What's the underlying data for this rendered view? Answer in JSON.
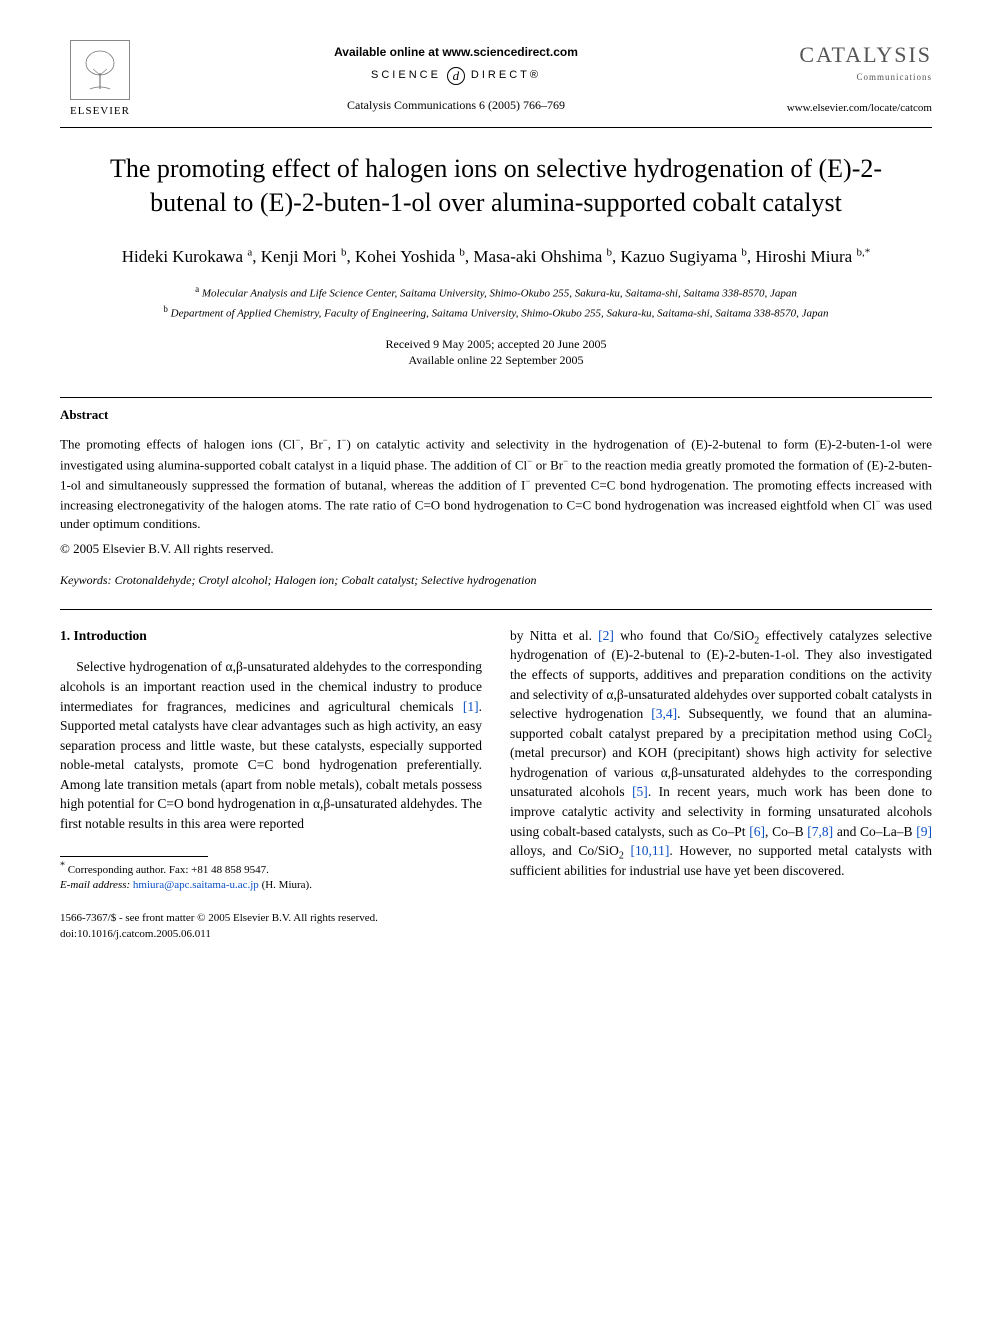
{
  "header": {
    "elsevier": "ELSEVIER",
    "available_online": "Available online at www.sciencedirect.com",
    "science_left": "SCIENCE",
    "science_d": "d",
    "science_right": "DIRECT®",
    "journal_ref": "Catalysis Communications 6 (2005) 766–769",
    "journal_title": "CATALYSIS",
    "journal_sub": "Communications",
    "locate_url": "www.elsevier.com/locate/catcom"
  },
  "article": {
    "title": "The promoting effect of halogen ions on selective hydrogenation of (E)-2-butenal to (E)-2-buten-1-ol over alumina-supported cobalt catalyst",
    "authors_html": "Hideki Kurokawa <sup>a</sup>, Kenji Mori <sup>b</sup>, Kohei Yoshida <sup>b</sup>, Masa-aki Ohshima <sup>b</sup>, Kazuo Sugiyama <sup>b</sup>, Hiroshi Miura <sup>b,*</sup>",
    "affiliations": {
      "a": "Molecular Analysis and Life Science Center, Saitama University, Shimo-Okubo 255, Sakura-ku, Saitama-shi, Saitama 338-8570, Japan",
      "b": "Department of Applied Chemistry, Faculty of Engineering, Saitama University, Shimo-Okubo 255, Sakura-ku, Saitama-shi, Saitama 338-8570, Japan"
    },
    "dates": {
      "received": "Received 9 May 2005; accepted 20 June 2005",
      "online": "Available online 22 September 2005"
    }
  },
  "abstract": {
    "heading": "Abstract",
    "text_html": "The promoting effects of halogen ions (Cl<sup>−</sup>, Br<sup>−</sup>, I<sup>−</sup>) on catalytic activity and selectivity in the hydrogenation of (E)-2-butenal to form (E)-2-buten-1-ol were investigated using alumina-supported cobalt catalyst in a liquid phase. The addition of Cl<sup>−</sup> or Br<sup>−</sup> to the reaction media greatly promoted the formation of (E)-2-buten-1-ol and simultaneously suppressed the formation of butanal, whereas the addition of I<sup>−</sup> prevented C=C bond hydrogenation. The promoting effects increased with increasing electronegativity of the halogen atoms. The rate ratio of C=O bond hydrogenation to C=C bond hydrogenation was increased eightfold when Cl<sup>−</sup> was used under optimum conditions.",
    "copyright": "© 2005 Elsevier B.V. All rights reserved."
  },
  "keywords": {
    "label": "Keywords:",
    "text": "Crotonaldehyde; Crotyl alcohol; Halogen ion; Cobalt catalyst; Selective hydrogenation"
  },
  "intro": {
    "heading": "1. Introduction",
    "col1_html": "Selective hydrogenation of α,β-unsaturated aldehydes to the corresponding alcohols is an important reaction used in the chemical industry to produce intermediates for fragrances, medicines and agricultural chemicals <span class=\"ref-link\">[1]</span>. Supported metal catalysts have clear advantages such as high activity, an easy separation process and little waste, but these catalysts, especially supported noble-metal catalysts, promote C=C bond hydrogenation preferentially. Among late transition metals (apart from noble metals), cobalt metals possess high potential for C=O bond hydrogenation in α,β-unsaturated aldehydes. The first notable results in this area were reported",
    "col2_html": "by Nitta et al. <span class=\"ref-link\">[2]</span> who found that Co/SiO<sub>2</sub> effectively catalyzes selective hydrogenation of (E)-2-butenal to (E)-2-buten-1-ol. They also investigated the effects of supports, additives and preparation conditions on the activity and selectivity of α,β-unsaturated aldehydes over supported cobalt catalysts in selective hydrogenation <span class=\"ref-link\">[3,4]</span>. Subsequently, we found that an alumina-supported cobalt catalyst prepared by a precipitation method using CoCl<sub>2</sub> (metal precursor) and KOH (precipitant) shows high activity for selective hydrogenation of various α,β-unsaturated aldehydes to the corresponding unsaturated alcohols <span class=\"ref-link\">[5]</span>. In recent years, much work has been done to improve catalytic activity and selectivity in forming unsaturated alcohols using cobalt-based catalysts, such as Co–Pt <span class=\"ref-link\">[6]</span>, Co–B <span class=\"ref-link\">[7,8]</span> and Co–La–B <span class=\"ref-link\">[9]</span> alloys, and Co/SiO<sub>2</sub> <span class=\"ref-link\">[10,11]</span>. However, no supported metal catalysts with sufficient abilities for industrial use have yet been discovered."
  },
  "footnote": {
    "corr": "Corresponding author. Fax: +81 48 858 9547.",
    "email_label": "E-mail address:",
    "email": "hmiura@apc.saitama-u.ac.jp",
    "email_who": "(H. Miura)."
  },
  "footer": {
    "line1": "1566-7367/$ - see front matter © 2005 Elsevier B.V. All rights reserved.",
    "line2": "doi:10.1016/j.catcom.2005.06.011"
  }
}
